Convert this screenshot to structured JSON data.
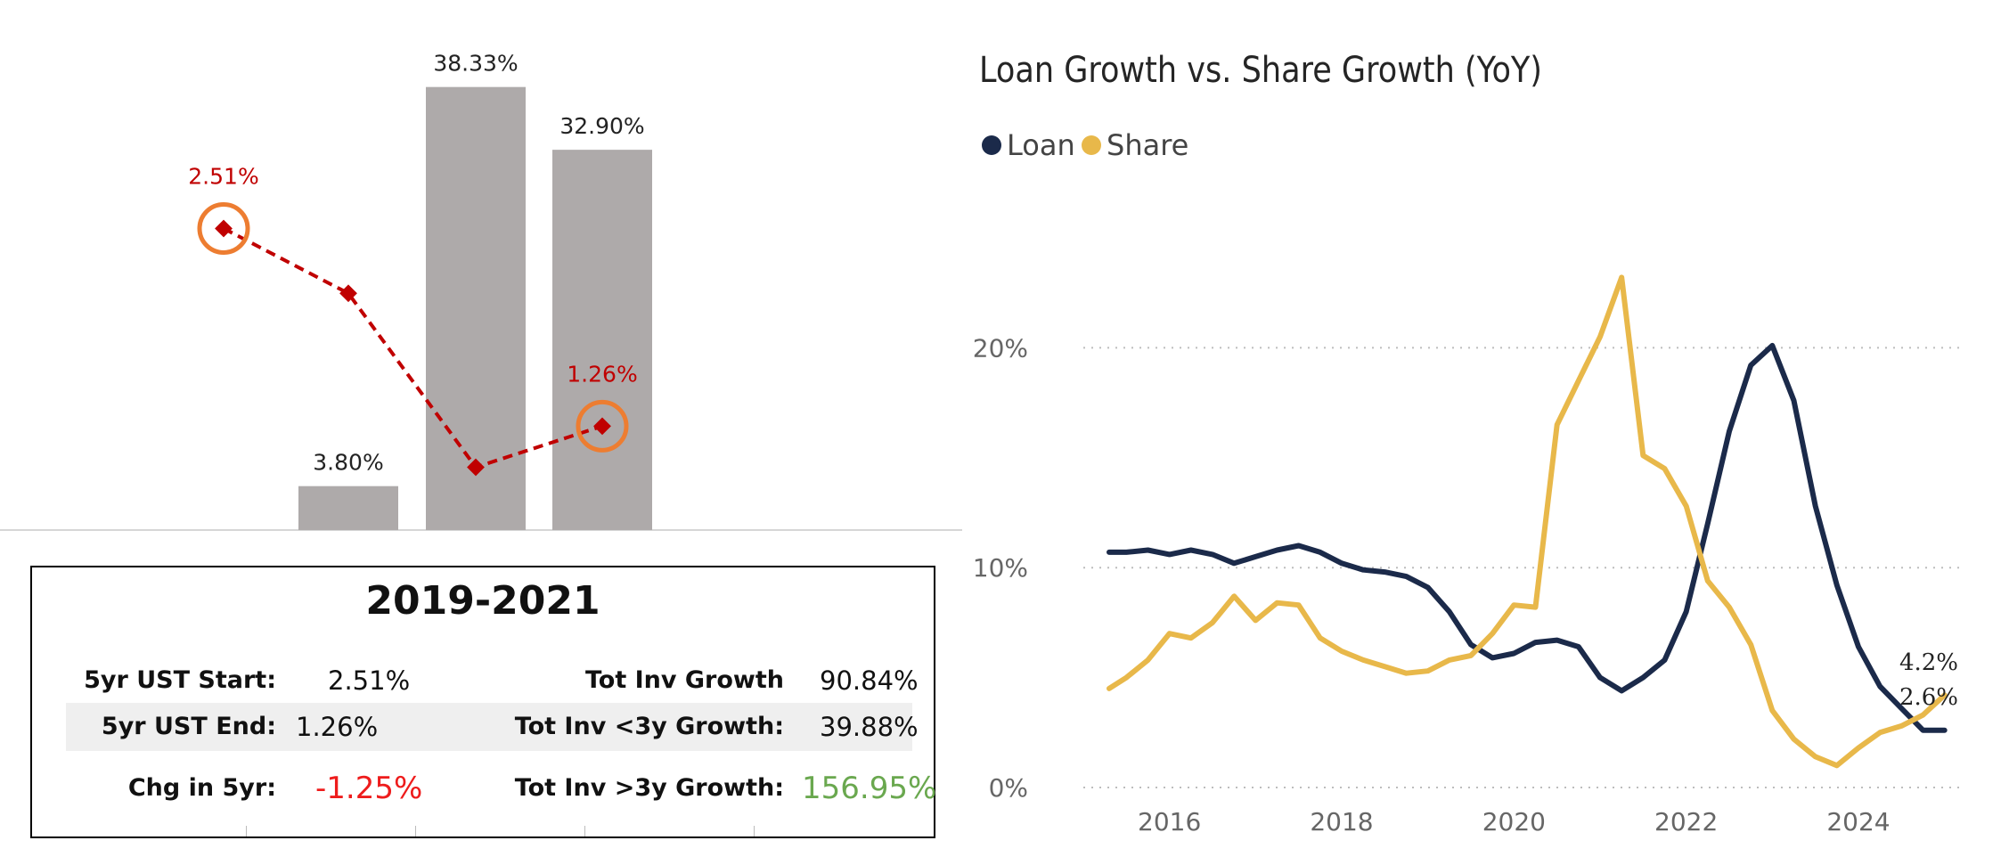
{
  "colors": {
    "bar": "#aeaaaa",
    "ust_line": "#c00000",
    "highlight_ring": "#ed7d31",
    "loan": "#1b2a4a",
    "share": "#e8b84a",
    "negative": "#ee1c1c",
    "positive": "#6aa84f"
  },
  "chart_data": [
    {
      "type": "bar",
      "categories": [
        "",
        "",
        "",
        ""
      ],
      "series": [
        {
          "values": [
            null,
            3.8,
            38.33,
            32.9
          ],
          "labels": [
            "",
            "3.80%",
            "38.33%",
            "32.90%"
          ]
        },
        {
          "values": [
            2.51,
            2.1,
            1.0,
            1.26
          ],
          "labels": [
            "2.51%",
            "",
            "",
            "1.26%"
          ]
        }
      ],
      "ylim": [
        0,
        40
      ],
      "highlighted_points": [
        0,
        3
      ],
      "grid": false
    },
    {
      "type": "line",
      "title": "Loan Growth vs. Share Growth (YoY)",
      "legend": [
        "Loan",
        "Share"
      ],
      "legend_position": "top-left",
      "x_ticks": [
        "2016",
        "2018",
        "2020",
        "2022",
        "2024"
      ],
      "y_ticks": [
        "0%",
        "10%",
        "20%"
      ],
      "ylim": [
        0,
        25
      ],
      "xlim": [
        2015,
        2025.2
      ],
      "grid": "horizontal-dotted",
      "series": [
        {
          "name": "Loan",
          "x": [
            2015.3,
            2015.5,
            2015.75,
            2016.0,
            2016.25,
            2016.5,
            2016.75,
            2017.0,
            2017.25,
            2017.5,
            2017.75,
            2018.0,
            2018.25,
            2018.5,
            2018.75,
            2019.0,
            2019.25,
            2019.5,
            2019.75,
            2020.0,
            2020.25,
            2020.5,
            2020.75,
            2021.0,
            2021.25,
            2021.5,
            2021.75,
            2022.0,
            2022.25,
            2022.5,
            2022.75,
            2023.0,
            2023.25,
            2023.5,
            2023.75,
            2024.0,
            2024.25,
            2024.5,
            2024.75,
            2025.0
          ],
          "y": [
            10.7,
            10.7,
            10.8,
            10.6,
            10.8,
            10.6,
            10.2,
            10.5,
            10.8,
            11.0,
            10.7,
            10.2,
            9.9,
            9.8,
            9.6,
            9.1,
            8.0,
            6.5,
            5.9,
            6.1,
            6.6,
            6.7,
            6.4,
            5.0,
            4.4,
            5.0,
            5.8,
            8.0,
            12.0,
            16.2,
            19.2,
            20.1,
            17.6,
            12.8,
            9.2,
            6.4,
            4.6,
            3.6,
            2.6,
            2.6
          ],
          "end_label": "2.6%"
        },
        {
          "name": "Share",
          "x": [
            2015.3,
            2015.5,
            2015.75,
            2016.0,
            2016.25,
            2016.5,
            2016.75,
            2017.0,
            2017.25,
            2017.5,
            2017.75,
            2018.0,
            2018.25,
            2018.5,
            2018.75,
            2019.0,
            2019.25,
            2019.5,
            2019.75,
            2020.0,
            2020.25,
            2020.5,
            2020.75,
            2021.0,
            2021.25,
            2021.5,
            2021.75,
            2022.0,
            2022.25,
            2022.5,
            2022.75,
            2023.0,
            2023.25,
            2023.5,
            2023.75,
            2024.0,
            2024.25,
            2024.5,
            2024.75,
            2025.0
          ],
          "y": [
            4.5,
            5.0,
            5.8,
            7.0,
            6.8,
            7.5,
            8.7,
            7.6,
            8.4,
            8.3,
            6.8,
            6.2,
            5.8,
            5.5,
            5.2,
            5.3,
            5.8,
            6.0,
            7.0,
            8.3,
            8.2,
            16.5,
            18.5,
            20.5,
            23.2,
            15.1,
            14.5,
            12.8,
            9.4,
            8.2,
            6.5,
            3.5,
            2.2,
            1.4,
            1.0,
            1.8,
            2.5,
            2.8,
            3.3,
            4.2
          ],
          "end_label": "4.2%"
        }
      ]
    }
  ],
  "stats_panel": {
    "title": "2019-2021",
    "rows": [
      {
        "left_label": "5yr UST Start:",
        "left_value": "2.51%",
        "right_label": "Tot Inv Growth",
        "right_value": "90.84%"
      },
      {
        "left_label": "5yr UST End:",
        "left_value": "1.26%",
        "right_label": "Tot Inv <3y Growth:",
        "right_value": "39.88%"
      },
      {
        "left_label": "Chg in 5yr:",
        "left_value": "-1.25%",
        "right_label": "Tot Inv >3y Growth:",
        "right_value": "156.95%"
      }
    ]
  }
}
